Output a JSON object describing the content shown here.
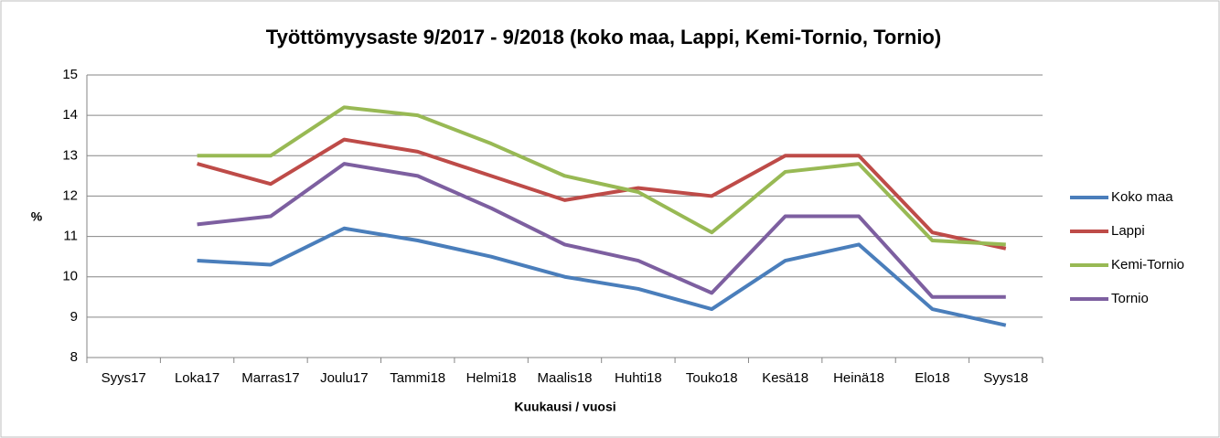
{
  "chart_data": {
    "type": "line",
    "title": "Työttömyysaste 9/2017 - 9/2018 (koko maa, Lappi, Kemi-Tornio, Tornio)",
    "xlabel": "Kuukausi / vuosi",
    "ylabel": "%",
    "categories": [
      "Syys17",
      "Loka17",
      "Marras17",
      "Joulu17",
      "Tammi18",
      "Helmi18",
      "Maalis18",
      "Huhti18",
      "Touko18",
      "Kesä18",
      "Heinä18",
      "Elo18",
      "Syys18"
    ],
    "series": [
      {
        "name": "Koko maa",
        "color": "#4a7ebb",
        "values": [
          null,
          10.4,
          10.3,
          11.2,
          10.9,
          10.5,
          10.0,
          9.7,
          9.2,
          10.4,
          10.8,
          9.2,
          8.8
        ]
      },
      {
        "name": "Lappi",
        "color": "#be4b48",
        "values": [
          null,
          12.8,
          12.3,
          13.4,
          13.1,
          12.5,
          11.9,
          12.2,
          12.0,
          13.0,
          13.0,
          11.1,
          10.7
        ]
      },
      {
        "name": "Kemi-Tornio",
        "color": "#98b954",
        "values": [
          null,
          13.0,
          13.0,
          14.2,
          14.0,
          13.3,
          12.5,
          12.1,
          11.1,
          12.6,
          12.8,
          10.9,
          10.8
        ]
      },
      {
        "name": "Tornio",
        "color": "#7d5fa0",
        "values": [
          null,
          11.3,
          11.5,
          12.8,
          12.5,
          11.7,
          10.8,
          10.4,
          9.6,
          11.5,
          11.5,
          9.5,
          9.5
        ]
      }
    ],
    "ylim": [
      8,
      15
    ],
    "yticks": [
      8,
      9,
      10,
      11,
      12,
      13,
      14,
      15
    ],
    "grid": true,
    "legend": "right"
  }
}
